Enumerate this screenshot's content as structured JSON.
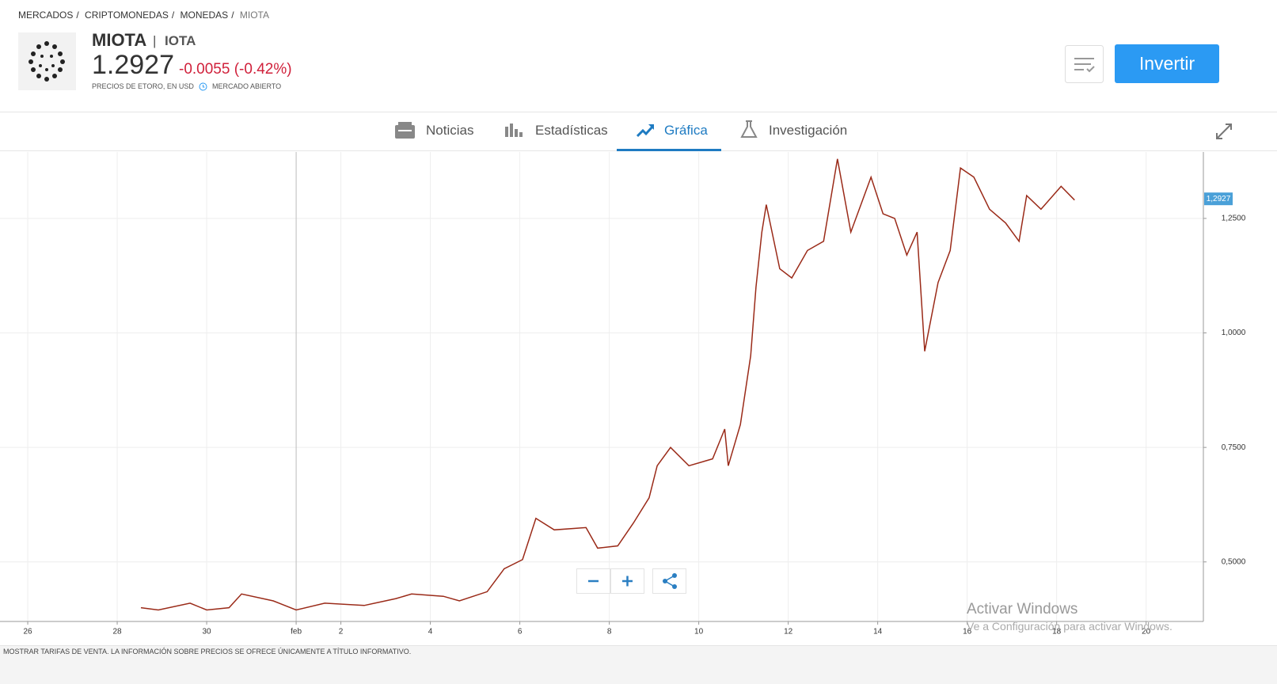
{
  "breadcrumb": [
    "MERCADOS",
    "CRIPTOMONEDAS",
    "MONEDAS",
    "MIOTA"
  ],
  "header": {
    "symbol": "MIOTA",
    "name": "IOTA",
    "price": "1.2927",
    "change": "-0.0055 (-0.42%)",
    "source": "PRECIOS DE ETORO, EN USD",
    "status": "MERCADO ABIERTO",
    "button": "Invertir"
  },
  "tabs": [
    "Noticias",
    "Estadísticas",
    "Gráfica",
    "Investigación"
  ],
  "footer": "MOSTRAR TARIFAS DE VENTA. LA INFORMACIÓN SOBRE PRECIOS SE OFRECE ÚNICAMENTE A TÍTULO INFORMATIVO.",
  "watermark": {
    "title": "Activar Windows",
    "text": "Ve a Configuración para activar Windows."
  },
  "chart_data": {
    "type": "line",
    "color": "#9a2a18",
    "x": [
      2.53,
      2.92,
      3.63,
      4.0,
      4.5,
      4.78,
      5.49,
      6.0,
      6.64,
      7.52,
      8.23,
      8.58,
      9.29,
      9.65,
      10.27,
      10.65,
      11.06,
      11.36,
      11.77,
      12.48,
      12.74,
      13.19,
      13.54,
      13.89,
      14.07,
      14.37,
      14.78,
      15.31,
      15.58,
      15.66,
      15.93,
      16.16,
      16.28,
      16.41,
      16.51,
      16.81,
      17.08,
      17.43,
      17.79,
      18.1,
      18.4,
      18.85,
      19.12,
      19.38,
      19.65,
      19.88,
      20.05,
      20.35,
      20.62,
      20.85,
      21.15,
      21.5,
      21.86,
      22.16,
      22.33,
      22.65,
      23.1,
      23.4
    ],
    "values": [
      0.4,
      0.395,
      0.41,
      0.395,
      0.4,
      0.43,
      0.415,
      0.395,
      0.41,
      0.405,
      0.42,
      0.43,
      0.425,
      0.415,
      0.435,
      0.485,
      0.505,
      0.595,
      0.57,
      0.575,
      0.53,
      0.535,
      0.585,
      0.64,
      0.71,
      0.75,
      0.71,
      0.725,
      0.79,
      0.71,
      0.8,
      0.95,
      1.1,
      1.22,
      1.28,
      1.14,
      1.12,
      1.18,
      1.2,
      1.38,
      1.22,
      1.34,
      1.26,
      1.25,
      1.17,
      1.22,
      0.96,
      1.11,
      1.18,
      1.36,
      1.34,
      1.27,
      1.24,
      1.2,
      1.3,
      1.27,
      1.32,
      1.29
    ],
    "xlim": [
      -0.62,
      26.28
    ],
    "xticks": [
      {
        "value": 0,
        "label": "26"
      },
      {
        "value": 2,
        "label": "28"
      },
      {
        "value": 4,
        "label": "30"
      },
      {
        "value": 6,
        "label": "feb"
      },
      {
        "value": 7,
        "label": "2"
      },
      {
        "value": 9,
        "label": "4"
      },
      {
        "value": 11,
        "label": "6"
      },
      {
        "value": 13,
        "label": "8"
      },
      {
        "value": 15,
        "label": "10"
      },
      {
        "value": 17,
        "label": "12"
      },
      {
        "value": 19,
        "label": "14"
      },
      {
        "value": 21,
        "label": "16"
      },
      {
        "value": 23,
        "label": "18"
      },
      {
        "value": 25,
        "label": "20"
      }
    ],
    "ylim": [
      0.37,
      1.395
    ],
    "yticks": [
      {
        "value": 0.5,
        "label": "0,5000"
      },
      {
        "value": 0.75,
        "label": "0,7500"
      },
      {
        "value": 1.0,
        "label": "1,0000"
      },
      {
        "value": 1.25,
        "label": "1,2500"
      }
    ],
    "last_price": {
      "value": 1.2927,
      "label": "1,2927"
    },
    "grid": true
  }
}
